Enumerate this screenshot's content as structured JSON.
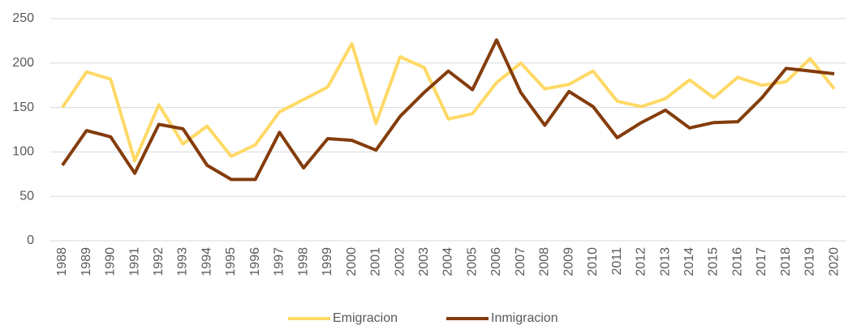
{
  "chart_data": {
    "type": "line",
    "categories": [
      "1988",
      "1989",
      "1990",
      "1991",
      "1992",
      "1993",
      "1994",
      "1995",
      "1996",
      "1997",
      "1998",
      "1999",
      "2000",
      "2001",
      "2002",
      "2003",
      "2004",
      "2005",
      "2006",
      "2007",
      "2008",
      "2009",
      "2010",
      "2011",
      "2012",
      "2013",
      "2014",
      "2015",
      "2016",
      "2017",
      "2018",
      "2019",
      "2020"
    ],
    "series": [
      {
        "name": "Emigracion",
        "color": "#ffd966",
        "values": [
          150,
          190,
          182,
          90,
          153,
          109,
          129,
          95,
          108,
          145,
          159,
          173,
          222,
          132,
          207,
          195,
          137,
          143,
          178,
          200,
          171,
          176,
          191,
          157,
          151,
          160,
          181,
          161,
          184,
          175,
          179,
          205,
          171
        ]
      },
      {
        "name": "Inmigracion",
        "color": "#843c0c",
        "values": [
          85,
          124,
          117,
          76,
          131,
          126,
          85,
          69,
          69,
          122,
          82,
          115,
          113,
          102,
          140,
          167,
          191,
          170,
          226,
          167,
          130,
          168,
          151,
          116,
          133,
          147,
          127,
          133,
          134,
          161,
          194,
          191,
          188
        ]
      }
    ],
    "ylim": [
      0,
      250
    ],
    "yticks": [
      0,
      50,
      100,
      150,
      200,
      250
    ],
    "grid": true,
    "legend": "bottom"
  }
}
